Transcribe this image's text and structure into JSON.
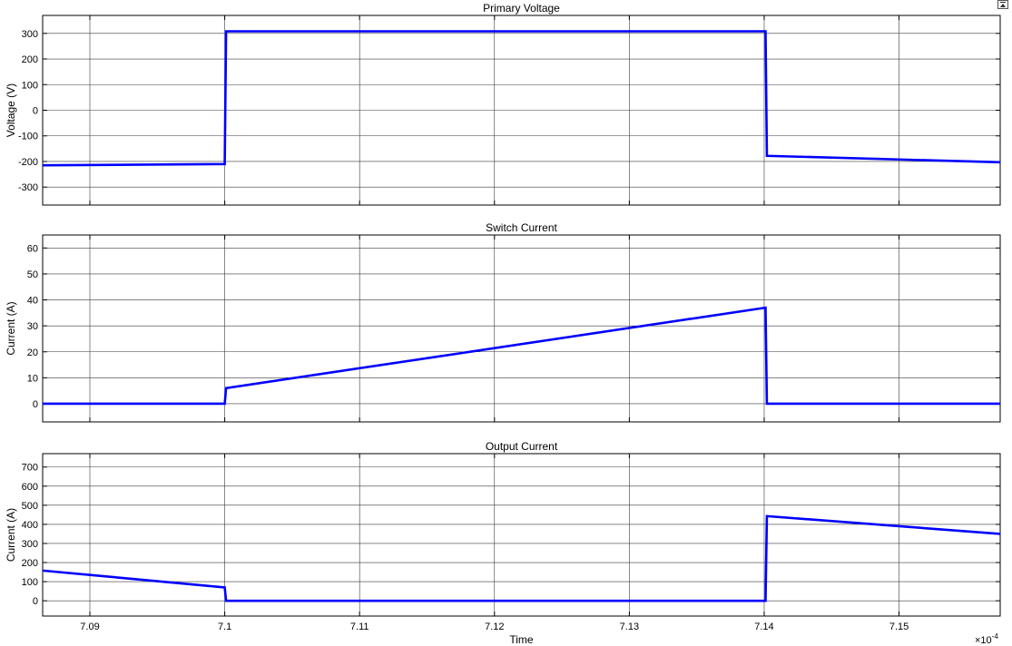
{
  "chart_data": [
    {
      "type": "line",
      "title": "Primary Voltage",
      "xlabel": "",
      "ylabel": "Voltage (V)",
      "xlim": [
        7.0865,
        7.1575
      ],
      "ylim": [
        -370,
        370
      ],
      "yticks": [
        -300,
        -200,
        -100,
        0,
        100,
        200,
        300
      ],
      "grid": true,
      "color": "#0000ff",
      "series": [
        {
          "x": [
            7.0865,
            7.1,
            7.1001,
            7.1401,
            7.1402,
            7.1575
          ],
          "y": [
            -215,
            -210,
            308,
            308,
            -178,
            -203
          ]
        }
      ]
    },
    {
      "type": "line",
      "title": "Switch Current",
      "xlabel": "",
      "ylabel": "Current (A)",
      "xlim": [
        7.0865,
        7.1575
      ],
      "ylim": [
        -7,
        65
      ],
      "yticks": [
        0,
        10,
        20,
        30,
        40,
        50,
        60
      ],
      "grid": true,
      "color": "#0000ff",
      "series": [
        {
          "x": [
            7.0865,
            7.1,
            7.1001,
            7.1401,
            7.1402,
            7.1575
          ],
          "y": [
            0,
            0,
            6,
            37,
            0,
            0
          ]
        }
      ]
    },
    {
      "type": "line",
      "title": "Output Current",
      "xlabel": "Time",
      "ylabel": "Current (A)",
      "xlim": [
        7.0865,
        7.1575
      ],
      "ylim": [
        -80,
        770
      ],
      "yticks": [
        0,
        100,
        200,
        300,
        400,
        500,
        600,
        700
      ],
      "xticks": [
        7.09,
        7.1,
        7.11,
        7.12,
        7.13,
        7.14,
        7.15
      ],
      "x_exponent": "×10",
      "x_exponent_power": "-4",
      "grid": true,
      "color": "#0000ff",
      "series": [
        {
          "x": [
            7.0865,
            7.1,
            7.1001,
            7.1401,
            7.1402,
            7.1575
          ],
          "y": [
            158,
            70,
            0,
            0,
            443,
            350
          ]
        }
      ]
    }
  ],
  "toolbar": {
    "dock_icon": "dock-icon"
  }
}
